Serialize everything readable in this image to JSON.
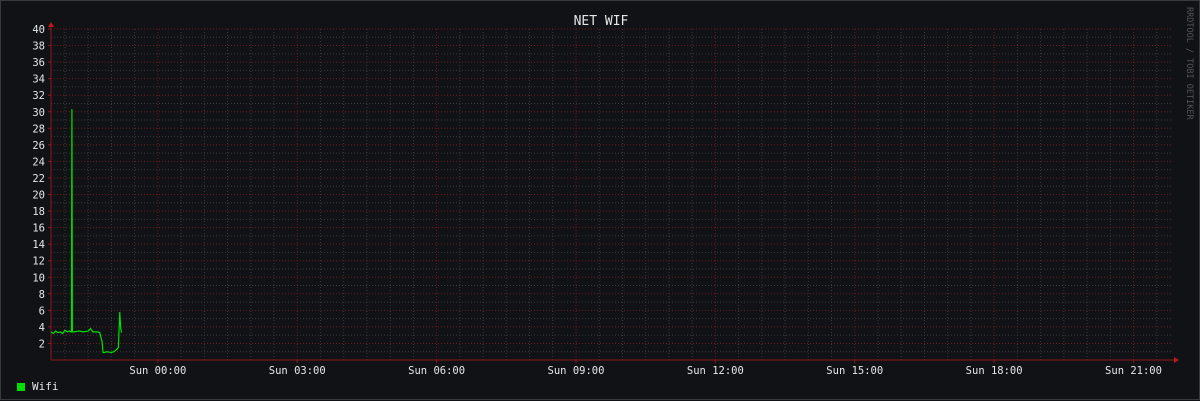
{
  "chart_data": {
    "type": "line",
    "title": "NET WIF",
    "watermark": "RRDTOOL / TOBI OETIKER",
    "ylim": [
      0,
      40
    ],
    "y_ticks": [
      2,
      4,
      6,
      8,
      10,
      12,
      14,
      16,
      18,
      20,
      22,
      24,
      26,
      28,
      30,
      32,
      34,
      36,
      38,
      40
    ],
    "xlim_hours": [
      -2.3,
      21.85
    ],
    "x_ticks": [
      {
        "hour": 0,
        "label": "Sun 00:00"
      },
      {
        "hour": 3,
        "label": "Sun 03:00"
      },
      {
        "hour": 6,
        "label": "Sun 06:00"
      },
      {
        "hour": 9,
        "label": "Sun 09:00"
      },
      {
        "hour": 12,
        "label": "Sun 12:00"
      },
      {
        "hour": 15,
        "label": "Sun 15:00"
      },
      {
        "hour": 18,
        "label": "Sun 18:00"
      },
      {
        "hour": 21,
        "label": "Sun 21:00"
      }
    ],
    "grid": true,
    "legend_position": "bottom-left",
    "series": [
      {
        "name": "Wifi",
        "color": "#00e000",
        "x": [
          -2.3,
          -2.25,
          -2.2,
          -2.15,
          -2.1,
          -2.05,
          -2.0,
          -1.95,
          -1.9,
          -1.86,
          -1.85,
          -1.84,
          -1.8,
          -1.7,
          -1.6,
          -1.5,
          -1.45,
          -1.4,
          -1.3,
          -1.25,
          -1.2,
          -1.18,
          -1.15,
          -1.1,
          -1.0,
          -0.95,
          -0.9,
          -0.85,
          -0.82,
          -0.8,
          -0.78
        ],
        "y": [
          3.4,
          3.2,
          3.5,
          3.3,
          3.4,
          3.2,
          3.6,
          3.4,
          3.5,
          3.4,
          30.3,
          3.4,
          3.4,
          3.5,
          3.4,
          3.5,
          3.8,
          3.4,
          3.4,
          3.3,
          2.2,
          0.9,
          0.9,
          1.0,
          0.9,
          1.0,
          1.2,
          1.5,
          5.8,
          3.8,
          3.3
        ]
      }
    ]
  },
  "legend": {
    "label": "Wifi",
    "color": "#00e000"
  },
  "colors": {
    "background": "#111216",
    "grid_major": "#6b1b1b",
    "grid_minor": "#3a3a3a",
    "axis": "#8a1a1a"
  }
}
